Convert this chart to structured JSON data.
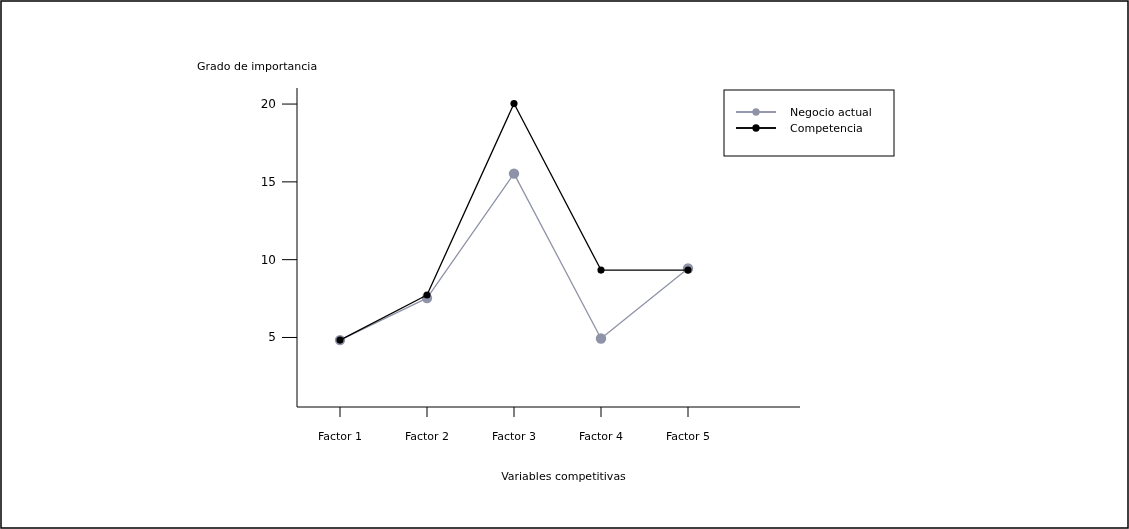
{
  "chart_data": {
    "type": "line",
    "ylabel": "Grado de importancia",
    "xlabel": "Variables competitivas",
    "categories": [
      "Factor 1",
      "Factor 2",
      "Factor 3",
      "Factor 4",
      "Factor 5"
    ],
    "series": [
      {
        "name": "Negocio actual",
        "color": "#8f93a8",
        "values": [
          4.8,
          7.5,
          15.5,
          4.9,
          9.4
        ]
      },
      {
        "name": "Competencia",
        "color": "#000000",
        "values": [
          4.8,
          7.7,
          20,
          9.3,
          9.3
        ]
      }
    ],
    "ylim": [
      0.5,
      21
    ],
    "yticks": [
      5,
      10,
      15,
      20
    ],
    "marker": "circle",
    "legend": "top right",
    "grid": false
  }
}
